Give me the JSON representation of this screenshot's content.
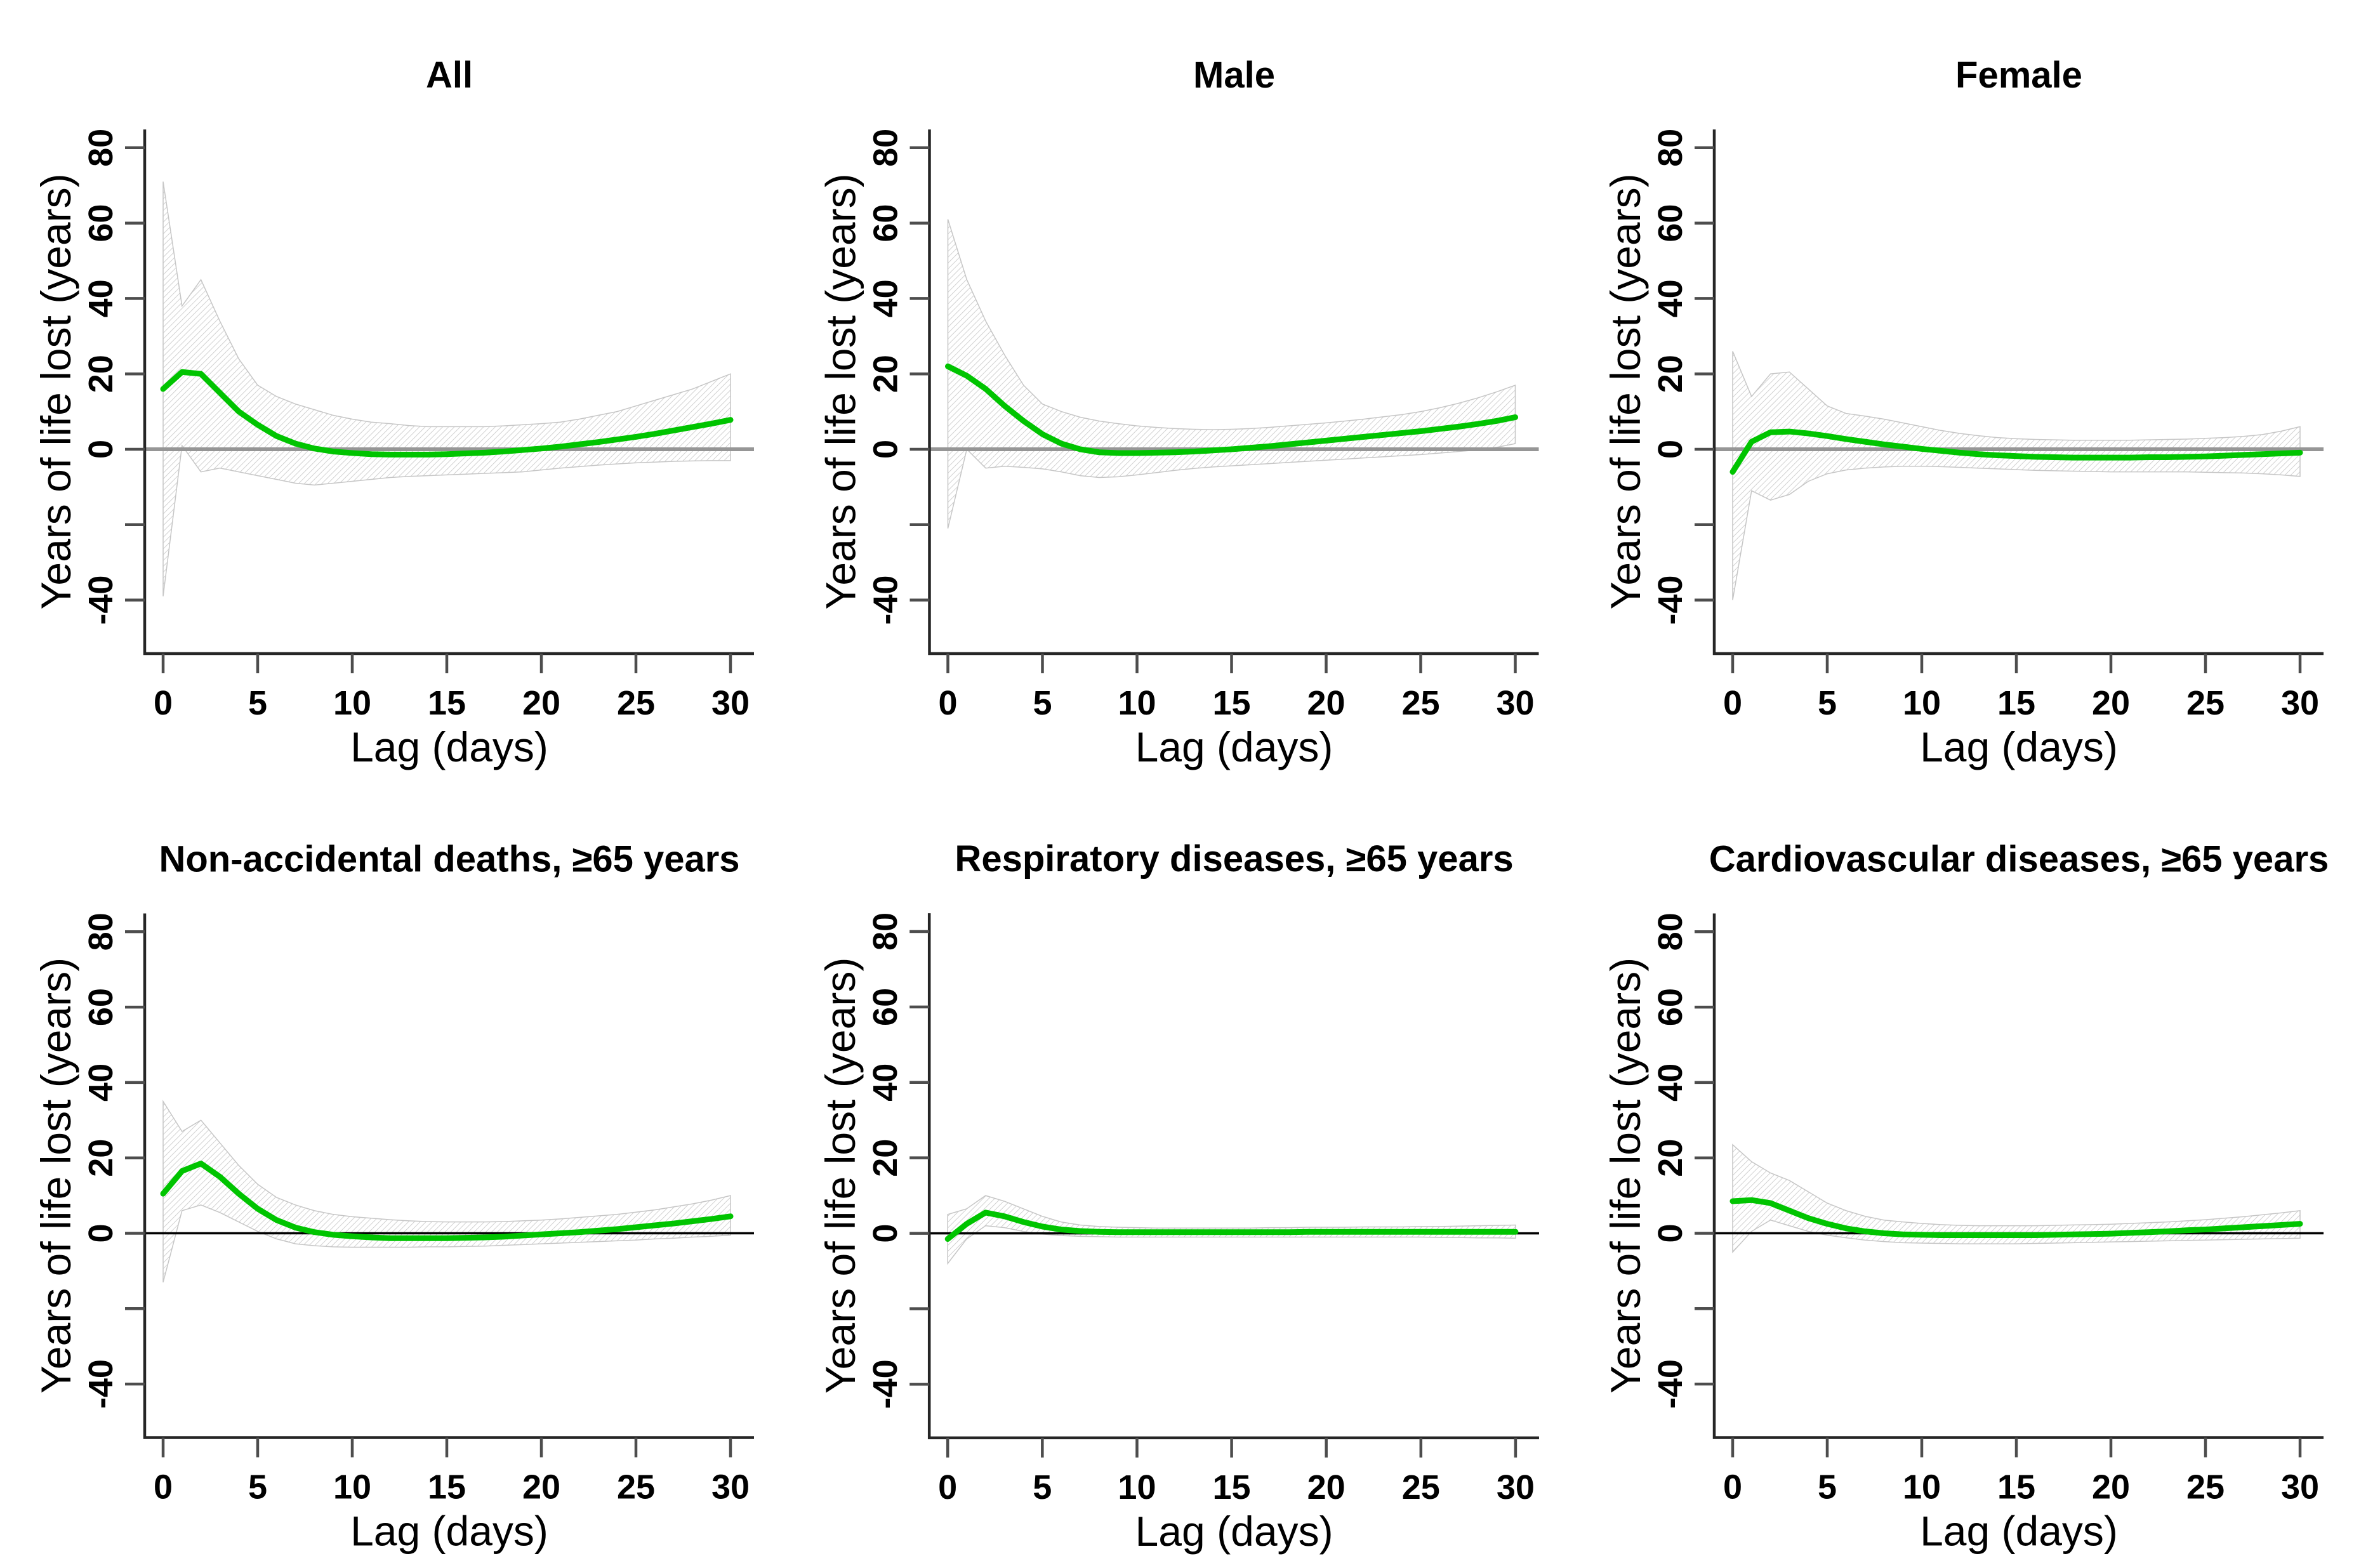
{
  "figure": {
    "background": "#ffffff",
    "layout": "2 rows x 3 columns of lag-response panels"
  },
  "style": {
    "line_color": "#00c400",
    "band_hatch_color": "#c9c9c9",
    "band_edge_color": "#c6c6c6",
    "axis_color": "#262626",
    "tick_color": "#4d4d4d",
    "zero_line_color_top_row": "#969696",
    "zero_line_color_bottom_row": "#000000",
    "text_color": "#000000"
  },
  "axes": {
    "xlabel": "Lag (days)",
    "ylabel": "Years of life lost (years)",
    "xticks": [
      0,
      5,
      10,
      15,
      20,
      25,
      30
    ],
    "ytick_values": [
      -40,
      -20,
      0,
      20,
      40,
      60,
      80
    ],
    "ytick_labels": [
      "-40",
      "",
      "0",
      "20",
      "40",
      "60",
      "80"
    ],
    "xlim": [
      0,
      30
    ],
    "ylim": [
      -55,
      88
    ],
    "grid": "off",
    "legend": "none"
  },
  "chart_data": [
    {
      "type": "line",
      "title": "All",
      "zero_line": "gray",
      "x": [
        0,
        1,
        2,
        3,
        4,
        5,
        6,
        7,
        8,
        9,
        10,
        11,
        12,
        13,
        14,
        15,
        16,
        17,
        18,
        19,
        20,
        21,
        22,
        23,
        24,
        25,
        26,
        27,
        28,
        29,
        30
      ],
      "series": [
        {
          "name": "estimate",
          "values": [
            16,
            20.5,
            20,
            15,
            10,
            6.5,
            3.5,
            1.5,
            0.2,
            -0.6,
            -1,
            -1.3,
            -1.4,
            -1.4,
            -1.4,
            -1.3,
            -1.1,
            -0.9,
            -0.6,
            -0.2,
            0.2,
            0.7,
            1.3,
            1.9,
            2.6,
            3.3,
            4.1,
            5,
            5.9,
            6.8,
            7.8
          ]
        },
        {
          "name": "ci_upper",
          "values": [
            71,
            38,
            45,
            34,
            24,
            17,
            14,
            12,
            10.5,
            9,
            8,
            7.2,
            6.8,
            6.3,
            6,
            6,
            6,
            6,
            6.2,
            6.5,
            6.8,
            7.2,
            8,
            9,
            10,
            11.5,
            13,
            14.5,
            16,
            18,
            20
          ]
        },
        {
          "name": "ci_lower",
          "values": [
            -39,
            1,
            -6,
            -5,
            -6,
            -7,
            -8,
            -9,
            -9.5,
            -9,
            -8.5,
            -8,
            -7.5,
            -7.2,
            -7,
            -6.8,
            -6.6,
            -6.4,
            -6.2,
            -6,
            -5.5,
            -5,
            -4.6,
            -4.2,
            -3.9,
            -3.6,
            -3.4,
            -3.2,
            -3.1,
            -3,
            -3
          ]
        }
      ]
    },
    {
      "type": "line",
      "title": "Male",
      "zero_line": "gray",
      "x": [
        0,
        1,
        2,
        3,
        4,
        5,
        6,
        7,
        8,
        9,
        10,
        11,
        12,
        13,
        14,
        15,
        16,
        17,
        18,
        19,
        20,
        21,
        22,
        23,
        24,
        25,
        26,
        27,
        28,
        29,
        30
      ],
      "series": [
        {
          "name": "estimate",
          "values": [
            22,
            19.5,
            16,
            11.5,
            7.5,
            4,
            1.5,
            0,
            -0.8,
            -1,
            -1,
            -0.9,
            -0.8,
            -0.6,
            -0.3,
            0,
            0.4,
            0.8,
            1.3,
            1.8,
            2.3,
            2.8,
            3.3,
            3.8,
            4.3,
            4.8,
            5.4,
            6,
            6.7,
            7.5,
            8.5
          ]
        },
        {
          "name": "ci_upper",
          "values": [
            61,
            45,
            34,
            25,
            17,
            12,
            10,
            8.5,
            7.5,
            6.8,
            6.2,
            5.8,
            5.5,
            5.3,
            5.2,
            5.3,
            5.5,
            5.8,
            6.2,
            6.6,
            7,
            7.5,
            8,
            8.6,
            9.2,
            10,
            11,
            12.2,
            13.6,
            15.2,
            17
          ]
        },
        {
          "name": "ci_lower",
          "values": [
            -21,
            0,
            -5,
            -4.5,
            -4.8,
            -5.2,
            -6,
            -7,
            -7.5,
            -7.3,
            -6.8,
            -6.2,
            -5.6,
            -5.1,
            -4.7,
            -4.4,
            -4.1,
            -3.8,
            -3.5,
            -3.2,
            -2.9,
            -2.6,
            -2.3,
            -2,
            -1.7,
            -1.4,
            -1,
            -0.6,
            -0.2,
            0.5,
            1.5
          ]
        }
      ]
    },
    {
      "type": "line",
      "title": "Female",
      "zero_line": "gray",
      "x": [
        0,
        1,
        2,
        3,
        4,
        5,
        6,
        7,
        8,
        9,
        10,
        11,
        12,
        13,
        14,
        15,
        16,
        17,
        18,
        19,
        20,
        21,
        22,
        23,
        24,
        25,
        26,
        27,
        28,
        29,
        30
      ],
      "series": [
        {
          "name": "estimate",
          "values": [
            -6,
            2,
            4.5,
            4.7,
            4.2,
            3.5,
            2.7,
            2,
            1.3,
            0.7,
            0.1,
            -0.4,
            -0.9,
            -1.3,
            -1.6,
            -1.8,
            -2,
            -2.1,
            -2.2,
            -2.2,
            -2.2,
            -2.2,
            -2.1,
            -2.1,
            -2,
            -1.9,
            -1.7,
            -1.5,
            -1.3,
            -1.1,
            -0.9
          ]
        },
        {
          "name": "ci_upper",
          "values": [
            26,
            14,
            20,
            20.5,
            16,
            11.5,
            9.5,
            8.8,
            8,
            7,
            6,
            5,
            4.2,
            3.6,
            3.1,
            2.8,
            2.6,
            2.5,
            2.4,
            2.4,
            2.4,
            2.4,
            2.5,
            2.6,
            2.7,
            2.9,
            3.1,
            3.4,
            3.9,
            4.8,
            6
          ]
        },
        {
          "name": "ci_lower",
          "values": [
            -40,
            -11,
            -13.5,
            -12,
            -8.5,
            -6.5,
            -5.5,
            -5,
            -4.7,
            -4.5,
            -4.5,
            -4.6,
            -4.8,
            -5,
            -5.2,
            -5.4,
            -5.6,
            -5.7,
            -5.8,
            -5.9,
            -6,
            -6,
            -6,
            -6,
            -6,
            -6.1,
            -6.2,
            -6.3,
            -6.5,
            -6.8,
            -7.2
          ]
        }
      ]
    },
    {
      "type": "line",
      "title": "Non-accidental deaths, ≥65 years",
      "zero_line": "black",
      "x": [
        0,
        1,
        2,
        3,
        4,
        5,
        6,
        7,
        8,
        9,
        10,
        11,
        12,
        13,
        14,
        15,
        16,
        17,
        18,
        19,
        20,
        21,
        22,
        23,
        24,
        25,
        26,
        27,
        28,
        29,
        30
      ],
      "series": [
        {
          "name": "estimate",
          "values": [
            10.5,
            16.5,
            18.5,
            15,
            10.5,
            6.5,
            3.5,
            1.5,
            0.3,
            -0.4,
            -0.8,
            -1.1,
            -1.3,
            -1.3,
            -1.3,
            -1.3,
            -1.2,
            -1.1,
            -0.9,
            -0.6,
            -0.3,
            0,
            0.3,
            0.7,
            1.1,
            1.6,
            2.1,
            2.6,
            3.2,
            3.8,
            4.5
          ]
        },
        {
          "name": "ci_upper",
          "values": [
            35,
            27,
            30,
            24,
            18,
            13,
            9.5,
            7.5,
            6,
            5,
            4.4,
            4,
            3.6,
            3.3,
            3.1,
            3,
            3,
            3,
            3.1,
            3.3,
            3.5,
            3.8,
            4.2,
            4.6,
            5,
            5.6,
            6.2,
            7,
            7.8,
            8.8,
            10
          ]
        },
        {
          "name": "ci_lower",
          "values": [
            -13,
            6,
            7.5,
            5.5,
            3,
            0.5,
            -1.5,
            -2.8,
            -3.3,
            -3.6,
            -3.7,
            -3.7,
            -3.7,
            -3.7,
            -3.6,
            -3.6,
            -3.5,
            -3.4,
            -3.2,
            -3,
            -2.8,
            -2.6,
            -2.4,
            -2.2,
            -2,
            -1.8,
            -1.5,
            -1.3,
            -1,
            -0.8,
            -0.5
          ]
        }
      ]
    },
    {
      "type": "line",
      "title": "Respiratory diseases, ≥65 years",
      "zero_line": "black",
      "x": [
        0,
        1,
        2,
        3,
        4,
        5,
        6,
        7,
        8,
        9,
        10,
        11,
        12,
        13,
        14,
        15,
        16,
        17,
        18,
        19,
        20,
        21,
        22,
        23,
        24,
        25,
        26,
        27,
        28,
        29,
        30
      ],
      "series": [
        {
          "name": "estimate",
          "values": [
            -1.5,
            2.5,
            5.5,
            4.5,
            3,
            1.8,
            1,
            0.6,
            0.4,
            0.3,
            0.3,
            0.3,
            0.3,
            0.3,
            0.3,
            0.3,
            0.3,
            0.3,
            0.3,
            0.4,
            0.4,
            0.4,
            0.4,
            0.4,
            0.4,
            0.4,
            0.4,
            0.4,
            0.4,
            0.4,
            0.4
          ]
        },
        {
          "name": "ci_upper",
          "values": [
            5,
            6.5,
            10,
            8.5,
            6.5,
            4.5,
            3,
            2.2,
            1.8,
            1.6,
            1.5,
            1.4,
            1.4,
            1.4,
            1.4,
            1.4,
            1.4,
            1.5,
            1.5,
            1.6,
            1.6,
            1.6,
            1.7,
            1.7,
            1.7,
            1.8,
            1.8,
            1.9,
            2,
            2.1,
            2.2
          ]
        },
        {
          "name": "ci_lower",
          "values": [
            -8,
            -1.5,
            2,
            1.5,
            0.5,
            -0.2,
            -0.6,
            -0.8,
            -0.9,
            -1,
            -1,
            -1,
            -1,
            -1,
            -1,
            -1,
            -1,
            -1,
            -1,
            -1,
            -1,
            -1,
            -1,
            -1,
            -1,
            -1,
            -1.1,
            -1.1,
            -1.2,
            -1.2,
            -1.3
          ]
        }
      ]
    },
    {
      "type": "line",
      "title": "Cardiovascular diseases, ≥65 years",
      "zero_line": "black",
      "x": [
        0,
        1,
        2,
        3,
        4,
        5,
        6,
        7,
        8,
        9,
        10,
        11,
        12,
        13,
        14,
        15,
        16,
        17,
        18,
        19,
        20,
        21,
        22,
        23,
        24,
        25,
        26,
        27,
        28,
        29,
        30
      ],
      "series": [
        {
          "name": "estimate",
          "values": [
            8.5,
            8.8,
            8,
            6,
            4,
            2.5,
            1.3,
            0.5,
            0,
            -0.3,
            -0.4,
            -0.5,
            -0.5,
            -0.5,
            -0.5,
            -0.5,
            -0.5,
            -0.4,
            -0.3,
            -0.2,
            -0.1,
            0.1,
            0.3,
            0.5,
            0.8,
            1,
            1.3,
            1.6,
            1.9,
            2.2,
            2.5
          ]
        },
        {
          "name": "ci_upper",
          "values": [
            23.5,
            19,
            16,
            14,
            11,
            8,
            6,
            4.5,
            3.5,
            3,
            2.6,
            2.3,
            2.1,
            2,
            2,
            2,
            2,
            2.1,
            2.2,
            2.3,
            2.4,
            2.6,
            2.8,
            3,
            3.3,
            3.6,
            4,
            4.4,
            4.9,
            5.4,
            6
          ]
        },
        {
          "name": "ci_lower",
          "values": [
            -5,
            0.5,
            3.5,
            2,
            0.5,
            -0.5,
            -1.2,
            -1.8,
            -2.2,
            -2.5,
            -2.6,
            -2.7,
            -2.8,
            -2.8,
            -2.8,
            -2.8,
            -2.7,
            -2.6,
            -2.5,
            -2.4,
            -2.3,
            -2.2,
            -2.1,
            -2,
            -1.9,
            -1.8,
            -1.7,
            -1.6,
            -1.5,
            -1.4,
            -1.3
          ]
        }
      ]
    }
  ]
}
